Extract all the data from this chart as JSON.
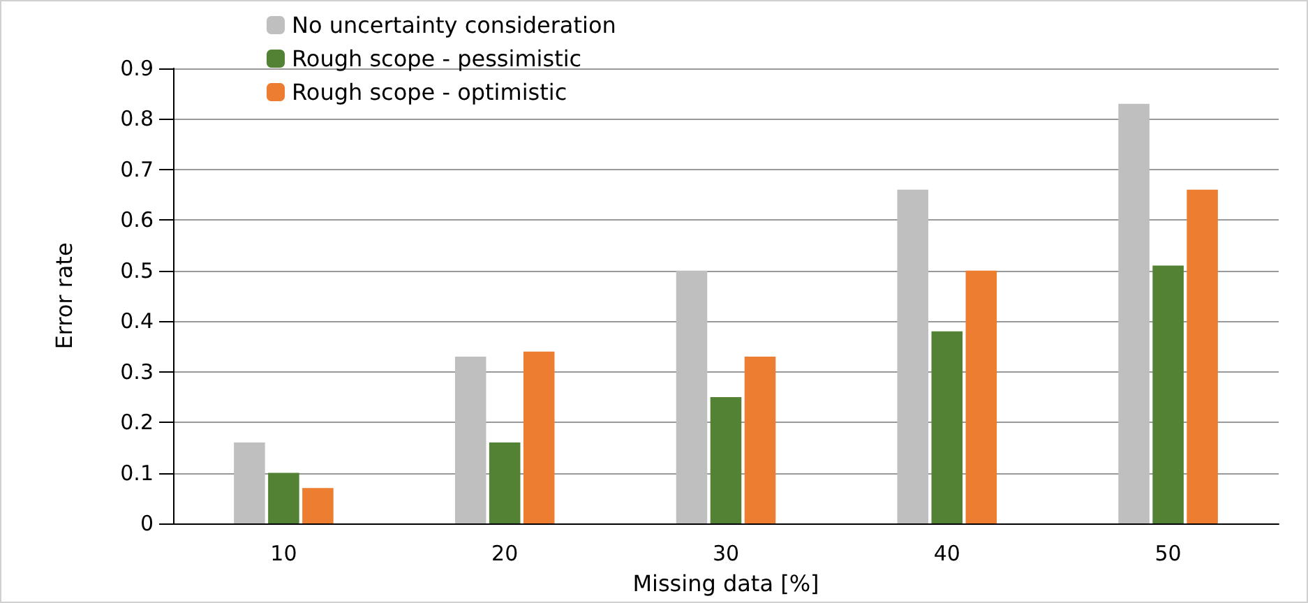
{
  "chart_data": {
    "type": "bar",
    "xlabel": "Missing data [%]",
    "ylabel": "Error rate",
    "categories": [
      "10",
      "20",
      "30",
      "40",
      "50"
    ],
    "series": [
      {
        "name": "No uncertainty consideration",
        "color": "#bfbfbf",
        "values": [
          0.16,
          0.33,
          0.5,
          0.66,
          0.83
        ]
      },
      {
        "name": "Rough scope - pessimistic",
        "color": "#548235",
        "values": [
          0.1,
          0.16,
          0.25,
          0.38,
          0.51
        ]
      },
      {
        "name": "Rough scope - optimistic",
        "color": "#ed7d31",
        "values": [
          0.07,
          0.34,
          0.33,
          0.5,
          0.66
        ]
      }
    ],
    "ylim": [
      0,
      0.9
    ],
    "yticks": [
      0,
      0.1,
      0.2,
      0.3,
      0.4,
      0.5,
      0.6,
      0.7,
      0.8,
      0.9
    ],
    "grid": "y",
    "legend": "top left"
  }
}
